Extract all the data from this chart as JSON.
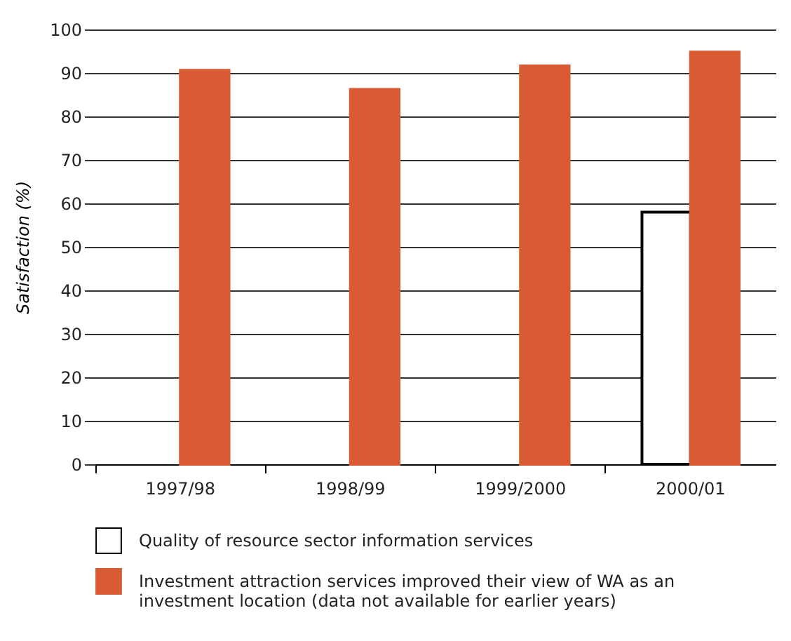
{
  "chart_data": {
    "type": "bar",
    "ylabel": "Satisfaction (%)",
    "categories": [
      "1997/98",
      "1998/99",
      "1999/2000",
      "2000/01"
    ],
    "series": [
      {
        "name": "Quality of resource sector information services",
        "color": "#ffffff",
        "values": [
          null,
          null,
          null,
          58
        ]
      },
      {
        "name": "Investment attraction services improved their view of WA as an investment location (data not available for earlier years)",
        "color": "#d85b33",
        "values": [
          90.6,
          86.2,
          91.6,
          94.8
        ]
      }
    ],
    "ylim": [
      0,
      100
    ],
    "yticks": [
      0,
      10,
      20,
      30,
      40,
      50,
      60,
      70,
      80,
      90,
      100
    ],
    "grid": "y",
    "legend": "bottom"
  }
}
